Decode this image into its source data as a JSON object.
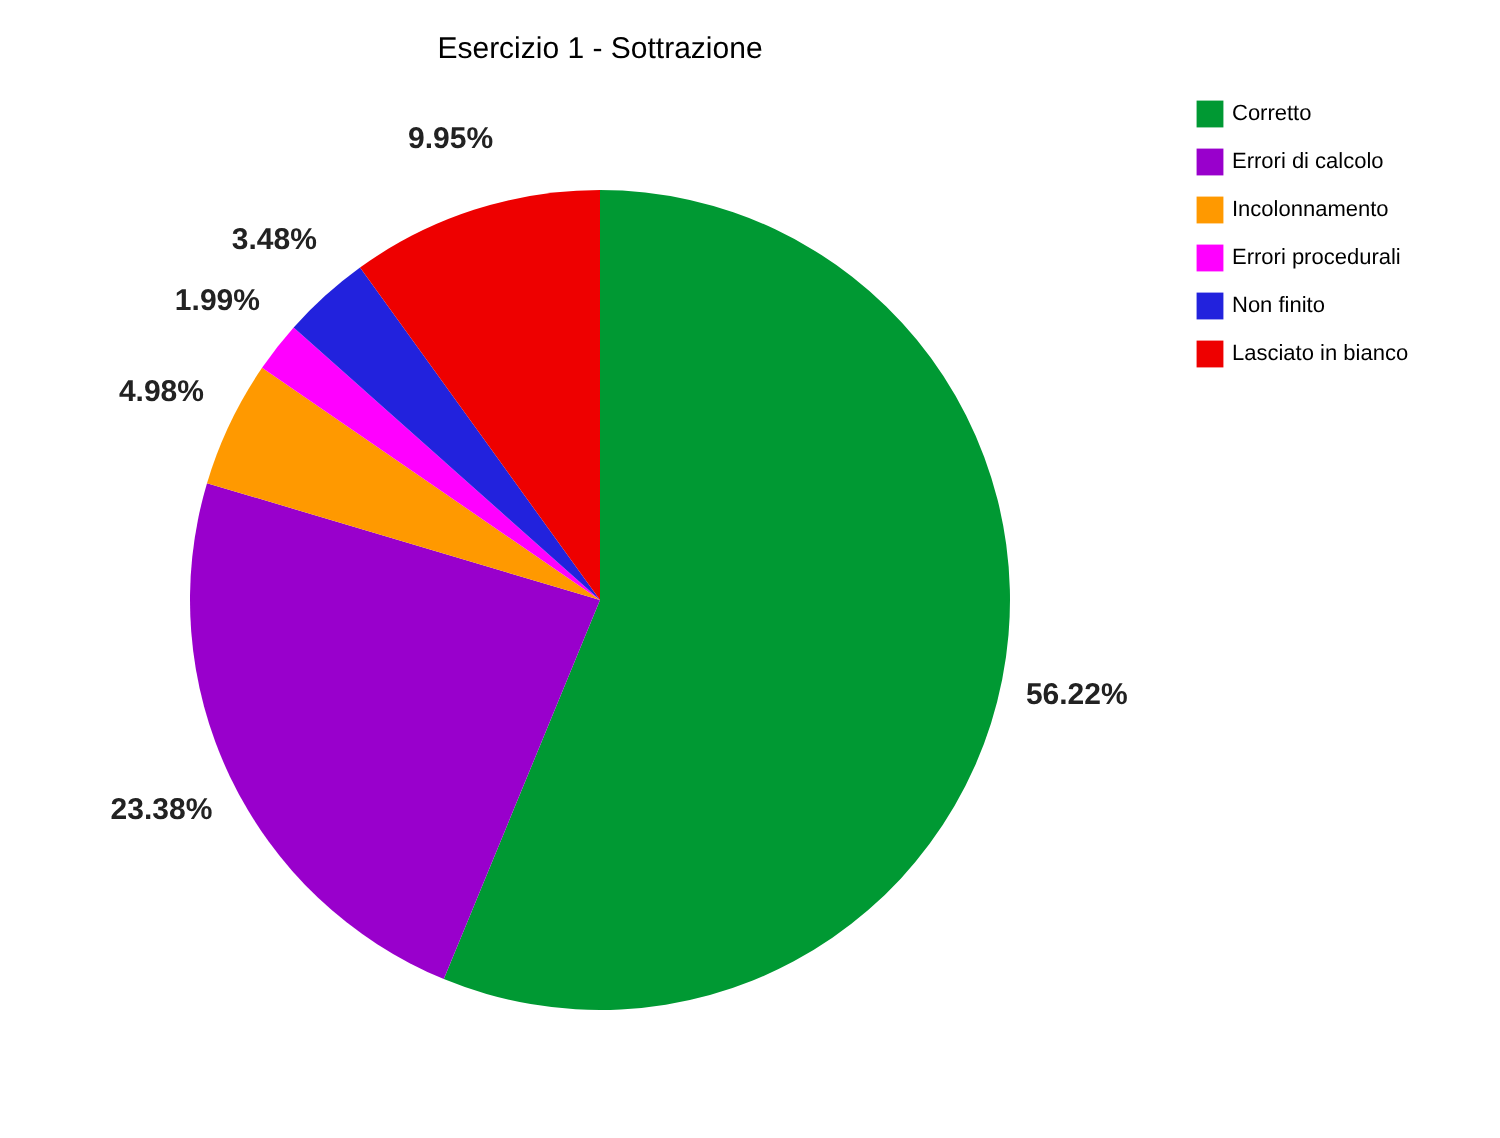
{
  "chart_data": {
    "type": "pie",
    "title": "Esercizio 1 - Sottrazione",
    "categories": [
      "Corretto",
      "Errori di calcolo",
      "Incolonnamento",
      "Errori procedurali",
      "Non finito",
      "Lasciato in bianco"
    ],
    "values": [
      56.22,
      23.38,
      4.98,
      1.99,
      3.48,
      9.95
    ],
    "colors": [
      "#009933",
      "#9900cc",
      "#ff9900",
      "#ff00ff",
      "#2222dd",
      "#ee0000"
    ],
    "value_labels": [
      "56.22%",
      "23.38%",
      "4.98%",
      "1.99%",
      "3.48%",
      "9.95%"
    ],
    "legend": "right"
  }
}
